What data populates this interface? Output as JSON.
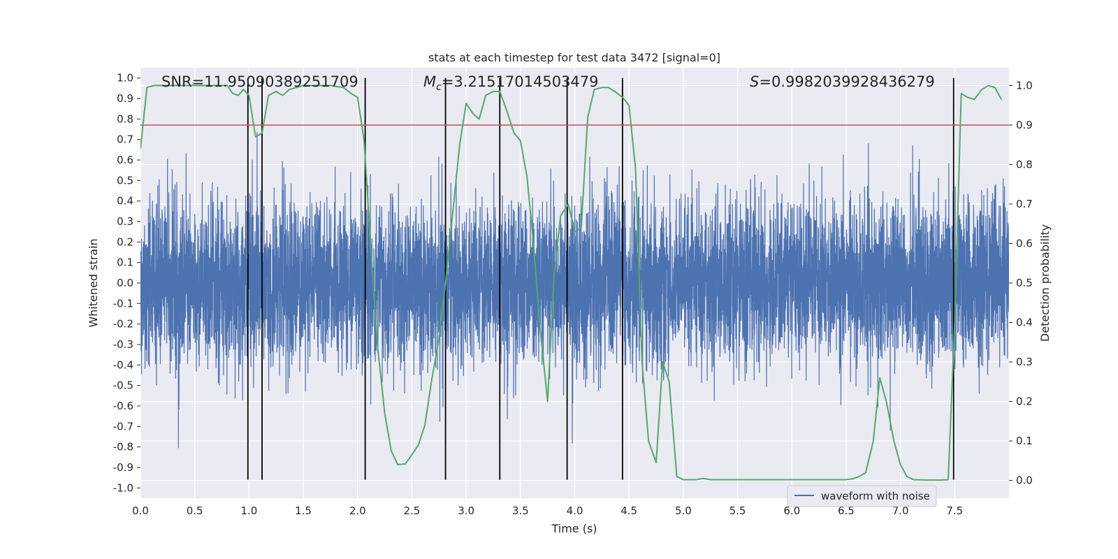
{
  "chart_data": {
    "type": "line",
    "title": "stats at each timestep for test data 3472 [signal=0]",
    "xlabel": "Time (s)",
    "ylabel": "Whitened strain",
    "y2label": "Detection probability",
    "xlim": [
      0.0,
      8.0
    ],
    "ylim": [
      -1.05,
      1.05
    ],
    "y2lim": [
      -0.045,
      1.045
    ],
    "x_ticks": [
      0.0,
      0.5,
      1.0,
      1.5,
      2.0,
      2.5,
      3.0,
      3.5,
      4.0,
      4.5,
      5.0,
      5.5,
      6.0,
      6.5,
      7.0,
      7.5
    ],
    "x_tick_labels": [
      "0.0",
      "0.5",
      "1.0",
      "1.5",
      "2.0",
      "2.5",
      "3.0",
      "3.5",
      "4.0",
      "4.5",
      "5.0",
      "5.5",
      "6.0",
      "6.5",
      "7.0",
      "7.5"
    ],
    "y_ticks": [
      1.0,
      0.9,
      0.8,
      0.7,
      0.6,
      0.5,
      0.4,
      0.3,
      0.2,
      0.1,
      0.0,
      -0.1,
      -0.2,
      -0.3,
      -0.4,
      -0.5,
      -0.6,
      -0.7,
      -0.8,
      -0.9,
      -1.0
    ],
    "y_tick_labels": [
      "1.0",
      "0.9",
      "0.8",
      "0.7",
      "0.6",
      "0.5",
      "0.4",
      "0.3",
      "0.2",
      "0.1",
      "0.0",
      "-0.1",
      "-0.2",
      "-0.3",
      "-0.4",
      "-0.5",
      "-0.6",
      "-0.7",
      "-0.8",
      "-0.9",
      "-1.0"
    ],
    "y2_ticks": [
      1.0,
      0.9,
      0.8,
      0.7,
      0.6,
      0.5,
      0.4,
      0.3,
      0.2,
      0.1,
      0.0
    ],
    "y2_tick_labels": [
      "1.0",
      "0.9",
      "0.8",
      "0.7",
      "0.6",
      "0.5",
      "0.4",
      "0.3",
      "0.2",
      "0.1",
      "0.0"
    ],
    "annotations": {
      "snr": "SNR=11.95090389251709",
      "mc_symbol": "M",
      "mc_subscript": "c",
      "mc_value": "=3.21517014503479",
      "s_symbol": "S",
      "s_value": "=0.9982039928436279"
    },
    "legend": {
      "label": "waveform with noise",
      "placement": "lower-right"
    },
    "threshold_line": {
      "value": 0.9,
      "axis": "y2",
      "color": "#c44e52"
    },
    "event_markers_x": [
      0.99,
      1.12,
      2.07,
      2.81,
      3.31,
      3.93,
      4.44,
      7.49
    ],
    "event_marker_range": [
      -0.96,
      1.0
    ],
    "series": [
      {
        "name": "waveform with noise",
        "axis": "y",
        "color": "#4c72b0",
        "style": "noise",
        "duration": 8.0,
        "sigma": 0.2
      },
      {
        "name": "Detection probability",
        "axis": "y2",
        "color": "#55a868",
        "x": [
          0.0,
          0.06,
          0.12,
          0.25,
          0.5,
          0.75,
          0.8,
          0.85,
          0.9,
          0.95,
          1.0,
          1.06,
          1.12,
          1.18,
          1.25,
          1.31,
          1.37,
          1.5,
          1.75,
          1.87,
          1.94,
          2.0,
          2.06,
          2.12,
          2.18,
          2.25,
          2.31,
          2.37,
          2.44,
          2.5,
          2.56,
          2.62,
          2.68,
          2.75,
          2.81,
          2.87,
          2.94,
          3.0,
          3.06,
          3.12,
          3.18,
          3.25,
          3.31,
          3.37,
          3.44,
          3.5,
          3.56,
          3.62,
          3.68,
          3.75,
          3.81,
          3.87,
          3.94,
          4.0,
          4.06,
          4.12,
          4.18,
          4.25,
          4.31,
          4.37,
          4.44,
          4.5,
          4.56,
          4.62,
          4.68,
          4.75,
          4.81,
          4.87,
          4.94,
          5.0,
          5.06,
          5.12,
          5.18,
          5.25,
          5.31,
          5.5,
          6.0,
          6.25,
          6.5,
          6.56,
          6.62,
          6.68,
          6.75,
          6.81,
          6.87,
          6.94,
          7.0,
          7.06,
          7.12,
          7.25,
          7.37,
          7.44,
          7.5,
          7.56,
          7.62,
          7.68,
          7.75,
          7.81,
          7.87,
          7.93
        ],
        "y": [
          0.84,
          0.995,
          1.0,
          1.0,
          1.0,
          1.0,
          1.0,
          0.98,
          0.975,
          0.99,
          0.975,
          0.87,
          0.88,
          0.975,
          0.985,
          0.975,
          0.99,
          1.0,
          1.0,
          0.995,
          0.98,
          0.97,
          0.86,
          0.6,
          0.35,
          0.17,
          0.075,
          0.04,
          0.042,
          0.065,
          0.09,
          0.14,
          0.25,
          0.36,
          0.5,
          0.66,
          0.85,
          0.955,
          0.93,
          0.915,
          0.975,
          0.985,
          0.985,
          0.94,
          0.88,
          0.86,
          0.77,
          0.6,
          0.39,
          0.2,
          0.52,
          0.67,
          0.7,
          0.63,
          0.64,
          0.92,
          0.99,
          0.995,
          0.995,
          0.985,
          0.97,
          0.95,
          0.79,
          0.3,
          0.1,
          0.045,
          0.3,
          0.25,
          0.01,
          0.002,
          0.002,
          0.002,
          0.005,
          0.002,
          0.002,
          0.002,
          0.002,
          0.002,
          0.002,
          0.004,
          0.01,
          0.02,
          0.1,
          0.26,
          0.2,
          0.1,
          0.04,
          0.01,
          0.002,
          0.001,
          0.001,
          0.002,
          0.4,
          0.98,
          0.97,
          0.965,
          0.99,
          1.0,
          0.995,
          0.965
        ]
      }
    ]
  }
}
